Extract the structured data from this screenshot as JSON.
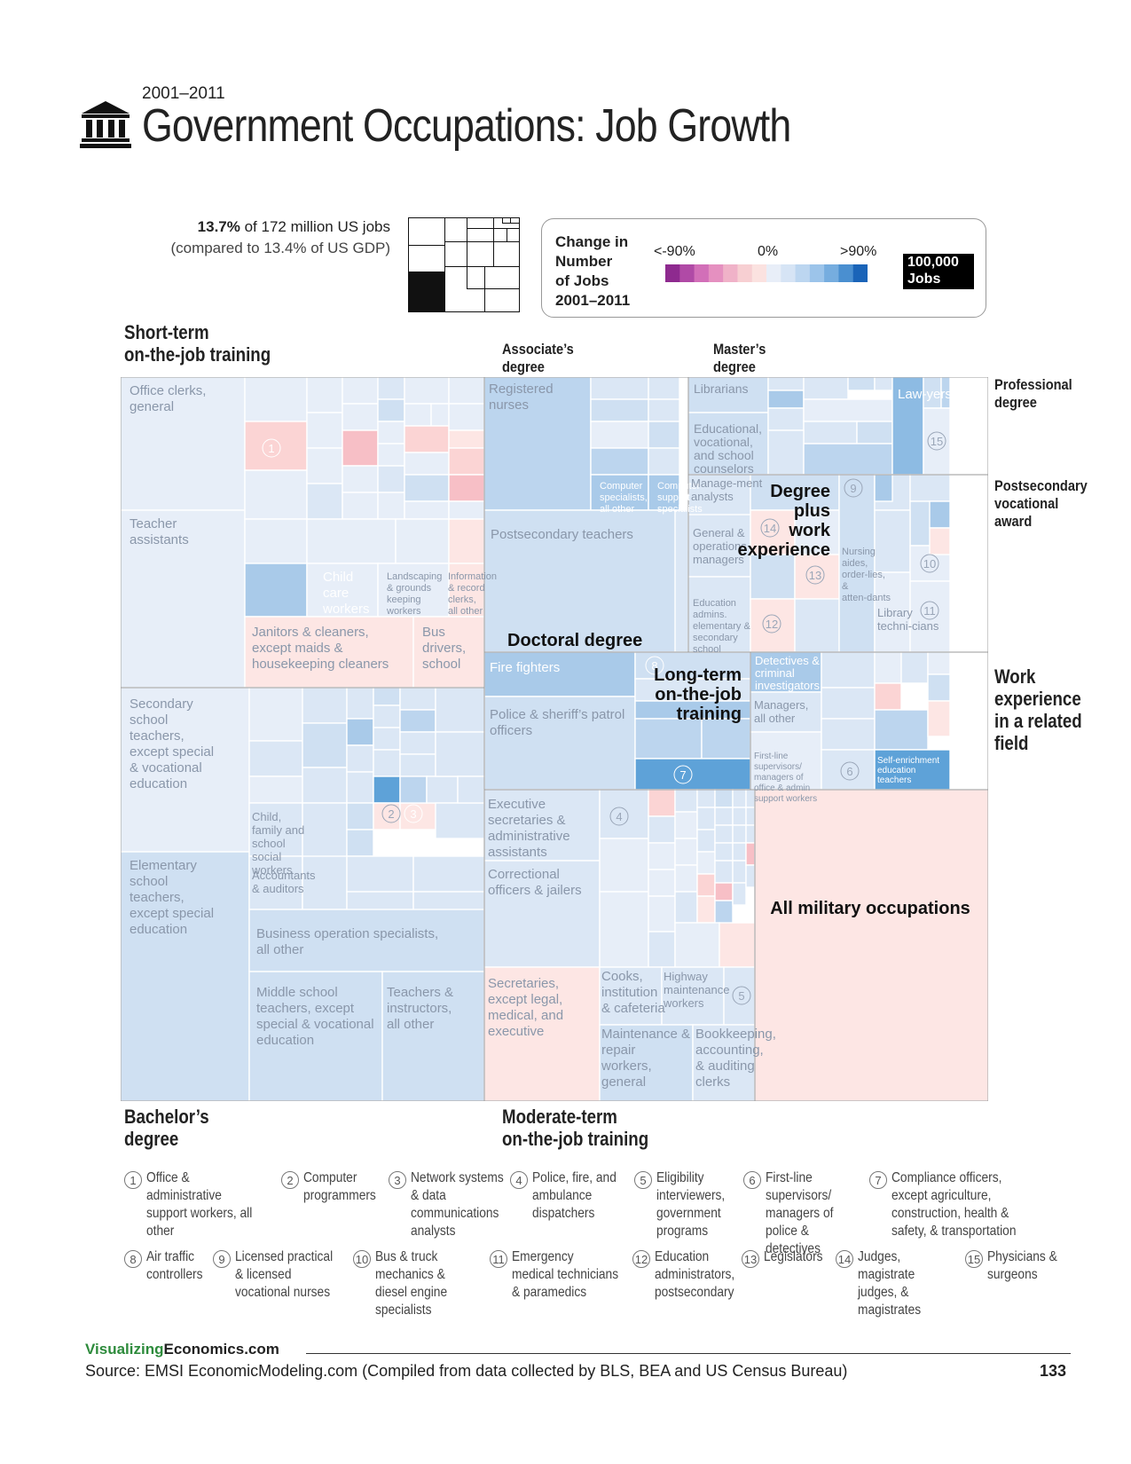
{
  "header": {
    "year_range": "2001–2011",
    "title": "Government Occupations: Job Growth",
    "icon": "government-building-icon"
  },
  "share": {
    "line1_bold": "13.7%",
    "line1_rest": " of 172 million US jobs",
    "line2": "(compared to 13.4% of US GDP)"
  },
  "legend": {
    "title_lines": [
      "Change in",
      "Number",
      "of Jobs",
      "2001–2011"
    ],
    "low_label": "<-90%",
    "mid_label": "0%",
    "high_label": ">90%",
    "scale_lines": [
      "100,000",
      "Jobs"
    ],
    "colors": {
      "low": "#8e2a8f",
      "mid": "#fbe2e0",
      "zero": "#e8eef8",
      "high": "#1a64b8"
    }
  },
  "edu_labels": {
    "short_term": [
      "Short-term",
      "on-the-job training"
    ],
    "associates": [
      "Associate’s",
      "degree"
    ],
    "masters": [
      "Master’s",
      "degree"
    ],
    "professional": [
      "Professional",
      "degree"
    ],
    "postsecondary": [
      "Postsecondary",
      "vocational",
      "award"
    ],
    "work_experience": [
      "Work",
      "experience",
      "in a related",
      "field"
    ],
    "bachelors": [
      "Bachelor’s",
      "degree"
    ],
    "moderate": [
      "Moderate-term",
      "on-the-job training"
    ],
    "doctoral": [
      "Doctoral degree"
    ],
    "long_term": [
      "Long-term",
      "on-the-job",
      "training"
    ],
    "degree_plus": [
      "Degree",
      "plus",
      "work",
      "experience"
    ],
    "military": [
      "All military occupations"
    ]
  },
  "chart_data": {
    "type": "treemap",
    "title": "Government Occupations: Job Growth",
    "subtitle": "2001–2011",
    "groups": [
      {
        "name": "Short-term on-the-job training",
        "occupations": [
          "Office clerks, general",
          "Teacher assistants",
          "Child care workers",
          "Landscaping & grounds keeping workers",
          "Information & record clerks, all other",
          "Janitors & cleaners, except maids & housekeeping cleaners",
          "Bus drivers, school"
        ]
      },
      {
        "name": "Associate’s degree",
        "occupations": [
          "Registered nurses",
          "Computer specialists, all other",
          "Computer support specialists"
        ]
      },
      {
        "name": "Master’s degree",
        "occupations": [
          "Librarians",
          "Educational, vocational, and school counselors"
        ]
      },
      {
        "name": "Professional degree",
        "occupations": [
          "Lawyers"
        ]
      },
      {
        "name": "Degree plus work experience",
        "occupations": [
          "Management analysts",
          "General & operations managers",
          "Education admins. elementary & secondary school"
        ]
      },
      {
        "name": "Postsecondary vocational award",
        "occupations": [
          "Nursing aides, orderlies, & attendants",
          "Library technicians"
        ]
      },
      {
        "name": "Doctoral degree",
        "occupations": [
          "Postsecondary teachers"
        ]
      },
      {
        "name": "Long-term on-the-job training",
        "occupations": [
          "Fire fighters",
          "Police & sheriff’s patrol officers"
        ]
      },
      {
        "name": "Work experience in a related field",
        "occupations": [
          "Detectives & criminal investigators",
          "Managers, all other",
          "First-line supervisors/managers of office & admin support workers",
          "Self-enrichment education teachers"
        ]
      },
      {
        "name": "Bachelor’s degree",
        "occupations": [
          "Secondary school teachers, except special & vocational education",
          "Elementary school teachers, except special education",
          "Child, family and school social workers",
          "Accountants & auditors",
          "Business operation specialists, all other",
          "Middle school teachers, except special & vocational education",
          "Teachers & instructors, all other"
        ]
      },
      {
        "name": "Moderate-term on-the-job training",
        "occupations": [
          "Executive secretaries & administrative assistants",
          "Correctional officers & jailers",
          "Secretaries, except legal, medical, and executive",
          "Cooks, institution & cafeteria",
          "Highway maintenance workers",
          "Maintenance & repair workers, general",
          "Bookkeeping, accounting, & auditing clerks"
        ]
      },
      {
        "name": "All military occupations",
        "occupations": []
      }
    ]
  },
  "tile_labels": {
    "office_clerks": "Office clerks, general",
    "teacher_assistants": "Teacher assistants",
    "child_care": "Child care workers",
    "landscaping": "Landscaping & grounds keeping workers",
    "info_clerks": "Information & record clerks, all other",
    "janitors": "Janitors & cleaners, except maids & housekeeping cleaners",
    "bus_drivers": "Bus drivers, school",
    "registered_nurses": "Registered nurses",
    "comp_specialists": "Computer specialists, all other",
    "comp_support": "Computer support specialists",
    "librarians": "Librarians",
    "counselors": "Educational, vocational, and school counselors",
    "lawyers": "Law-yers",
    "mgmt_analysts": "Manage-ment analysts",
    "gen_managers": "General & operations managers",
    "edu_admins": "Education admins. elementary & secondary school",
    "nursing_aides": "Nursing aides, order-lies, & atten-dants",
    "library_techs": "Library techni-cians",
    "postsec_teachers": "Postsecondary teachers",
    "fire_fighters": "Fire fighters",
    "police": "Police & sheriff’s patrol officers",
    "detectives": "Detectives & criminal investigators",
    "managers_other": "Managers, all other",
    "first_line_office": "First-line supervisors/ managers of office & admin support workers",
    "self_enrichment": "Self-enrichment education teachers",
    "secondary_teachers": "Secondary school teachers, except special & vocational education",
    "elementary_teachers": "Elementary school teachers, except special education",
    "social_workers": "Child, family and school social workers",
    "accountants": "Accountants & auditors",
    "business_ops": "Business operation specialists, all other",
    "middle_school": "Middle school teachers, except special & vocational education",
    "teachers_other": "Teachers & instructors, all other",
    "exec_secretaries": "Executive secretaries & administrative assistants",
    "correctional": "Correctional officers & jailers",
    "secretaries": "Secretaries, except legal, medical, and executive",
    "cooks": "Cooks, institution & cafeteria",
    "highway": "Highway maintenance workers",
    "maintenance": "Maintenance & repair workers, general",
    "bookkeeping": "Bookkeeping, accounting, & auditing clerks"
  },
  "footnotes": [
    {
      "num": "1",
      "text": "Office & administrative support workers, all other"
    },
    {
      "num": "2",
      "text": "Computer programmers"
    },
    {
      "num": "3",
      "text": "Network systems & data communications analysts"
    },
    {
      "num": "4",
      "text": "Police, fire, and ambulance dispatchers"
    },
    {
      "num": "5",
      "text": "Eligibility interviewers, government programs"
    },
    {
      "num": "6",
      "text": "First-line supervisors/ managers of police & detectives"
    },
    {
      "num": "7",
      "text": "Compliance officers, except agriculture, construction, health & safety, & transportation"
    },
    {
      "num": "8",
      "text": "Air traffic controllers"
    },
    {
      "num": "9",
      "text": "Licensed practical & licensed vocational nurses"
    },
    {
      "num": "10",
      "text": "Bus & truck mechanics & diesel engine specialists"
    },
    {
      "num": "11",
      "text": "Emergency medical technicians & paramedics"
    },
    {
      "num": "12",
      "text": "Education administrators, postsecondary"
    },
    {
      "num": "13",
      "text": "Legislators"
    },
    {
      "num": "14",
      "text": "Judges, magistrate judges, & magistrates"
    },
    {
      "num": "15",
      "text": "Physicians & surgeons"
    }
  ],
  "footer": {
    "site_green": "Visualizing",
    "site_black": "Economics.com",
    "source": "Source: EMSI EconomicModeling.com (Compiled from data collected by BLS, BEA and US Census Bureau)",
    "page_number": "133"
  }
}
